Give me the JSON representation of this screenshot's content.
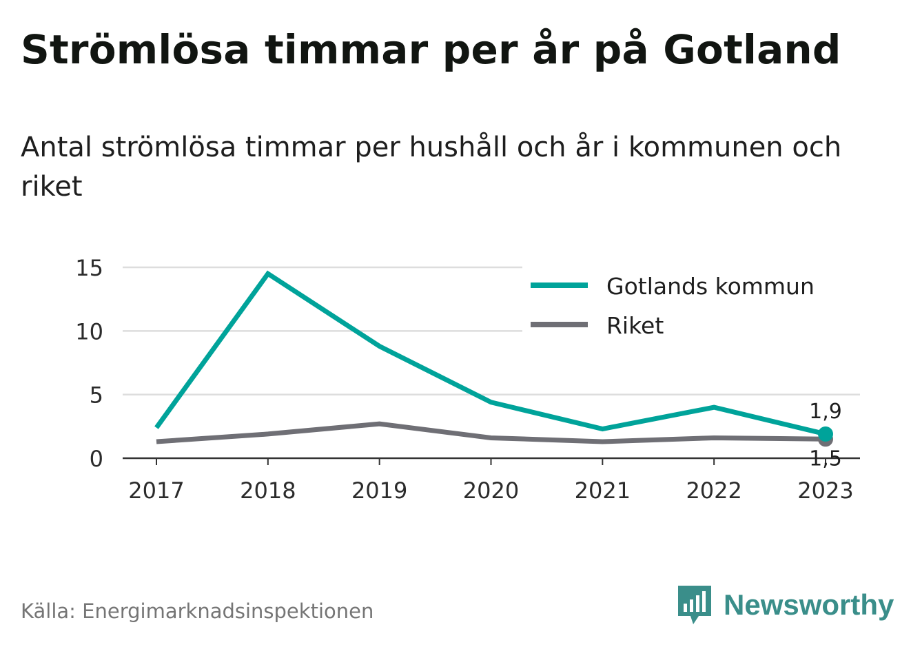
{
  "header": {
    "title": "Strömlösa timmar per år på Gotland",
    "subtitle": "Antal strömlösa timmar per hushåll och år i kommunen och riket"
  },
  "footer": {
    "source": "Källa: Energimarknadsinspektionen",
    "brand": "Newsworthy",
    "brand_icon": "bar-chart-speech-bubble-icon"
  },
  "colors": {
    "gotland": "#00a39a",
    "riket": "#6f6f75",
    "grid": "#dddddd",
    "axis": "#333333",
    "brand": "#3a8e8a"
  },
  "chart_data": {
    "type": "line",
    "title": "Strömlösa timmar per år på Gotland",
    "subtitle": "Antal strömlösa timmar per hushåll och år i kommunen och riket",
    "categories": [
      "2017",
      "2018",
      "2019",
      "2020",
      "2021",
      "2022",
      "2023"
    ],
    "series": [
      {
        "name": "Gotlands kommun",
        "values": [
          2.4,
          14.5,
          8.8,
          4.4,
          2.3,
          4.0,
          1.9
        ],
        "end_label": "1,9"
      },
      {
        "name": "Riket",
        "values": [
          1.3,
          1.9,
          2.7,
          1.6,
          1.3,
          1.6,
          1.5
        ],
        "end_label": "1,5"
      }
    ],
    "ylim": [
      0,
      15
    ],
    "yticks": [
      0,
      5,
      10,
      15
    ],
    "xlabel": "",
    "ylabel": "",
    "grid": true,
    "legend": "top-right"
  }
}
